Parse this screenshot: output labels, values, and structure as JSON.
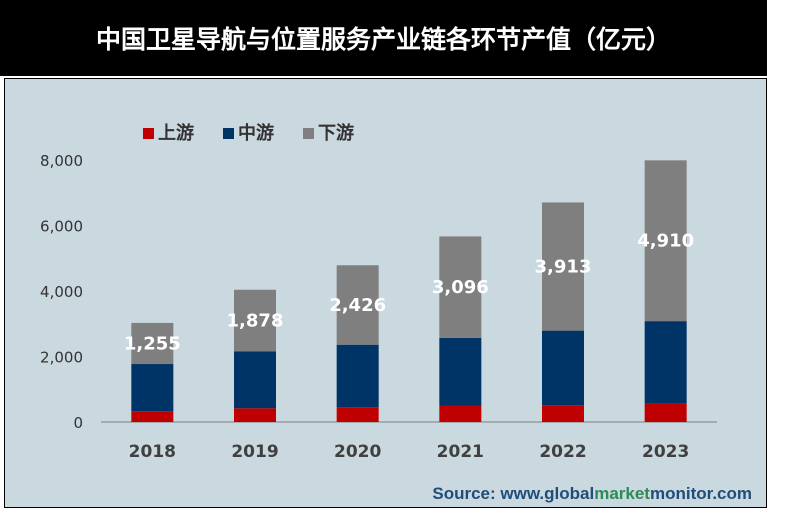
{
  "title": "中国卫星导航与位置服务产业链各环节产值（亿元）",
  "source": {
    "prefix": "Source: www.",
    "parts": [
      {
        "text": "global",
        "color": "#1f4e79"
      },
      {
        "text": "market",
        "color": "#2e8b57"
      },
      {
        "text": "monitor",
        "color": "#1f4e79"
      },
      {
        "text": ".com",
        "color": "#1f4e79"
      }
    ]
  },
  "colors": {
    "upstream": "#c00000",
    "midstream": "#003366",
    "downstream": "#7f7f7f",
    "panel": "#cad8e0"
  },
  "chart_data": {
    "type": "bar",
    "stacked": true,
    "categories": [
      "2018",
      "2019",
      "2020",
      "2021",
      "2022",
      "2023"
    ],
    "series": [
      {
        "name": "上游",
        "values": [
          330,
          420,
          450,
          490,
          510,
          560
        ],
        "color": "#c00000"
      },
      {
        "name": "中游",
        "values": [
          1440,
          1740,
          1910,
          2080,
          2280,
          2520
        ],
        "color": "#003366"
      },
      {
        "name": "下游",
        "values": [
          1255,
          1878,
          2426,
          3096,
          3913,
          4910
        ],
        "color": "#7f7f7f"
      }
    ],
    "data_labels": {
      "series": "下游",
      "text": [
        "1,255",
        "1,878",
        "2,426",
        "3,096",
        "3,913",
        "4,910"
      ]
    },
    "yticks": [
      "0",
      "2,000",
      "4,000",
      "6,000",
      "8,000"
    ],
    "ytick_values": [
      0,
      2000,
      4000,
      6000,
      8000
    ],
    "ylim": [
      0,
      8000
    ],
    "legend_position": "top-left",
    "grid": false
  }
}
